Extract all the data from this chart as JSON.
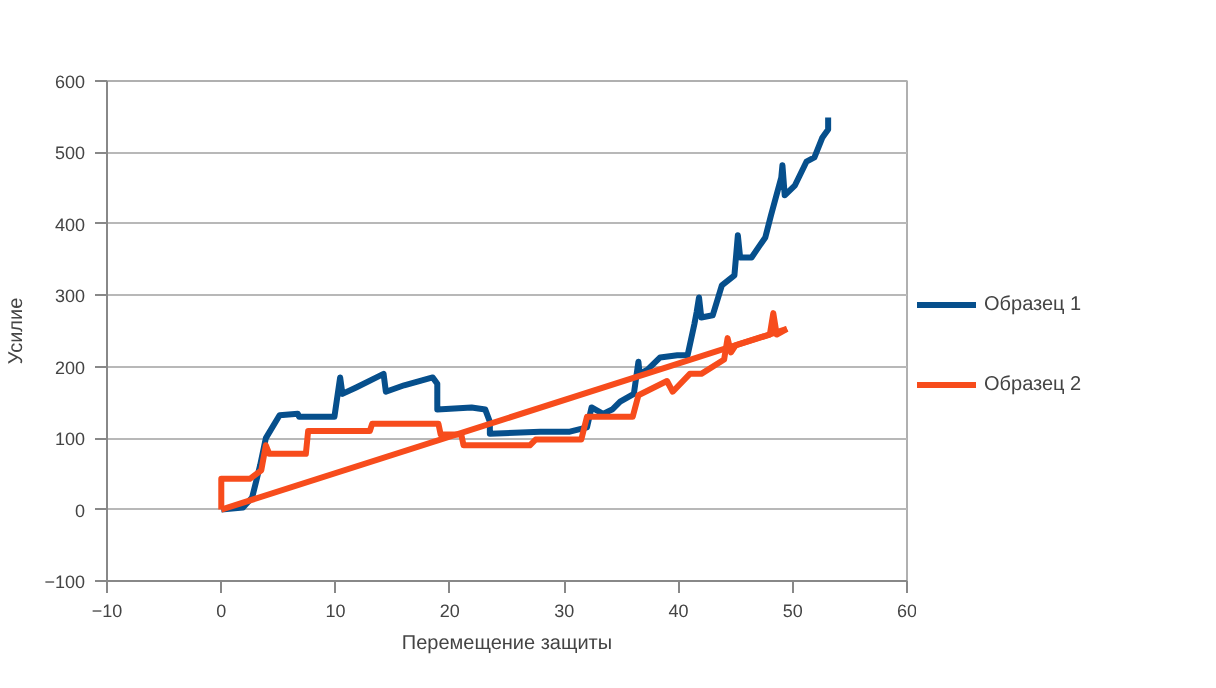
{
  "chart_data": {
    "type": "line",
    "xlabel": "Перемещение защиты",
    "ylabel": "Усилие",
    "xlim": [
      -10,
      60
    ],
    "ylim": [
      -100,
      600
    ],
    "xticks": [
      -10,
      0,
      10,
      20,
      30,
      40,
      50,
      60
    ],
    "yticks": [
      -100,
      0,
      100,
      200,
      300,
      400,
      500,
      600
    ],
    "grid": "y",
    "legend": "right",
    "marker": "none",
    "line_style": "solid",
    "series": [
      {
        "name": "Образец 1",
        "color": "#064f8c",
        "x": [
          0,
          1.9,
          2.7,
          3.4,
          3.9,
          5.1,
          6.7,
          6.8,
          9.9,
          10.4,
          10.6,
          11.8,
          14.2,
          14.4,
          16,
          18.5,
          18.9,
          18.9,
          21.9,
          23.1,
          23.5,
          23.5,
          27.9,
          30.5,
          32,
          32.4,
          33.4,
          34.2,
          34.9,
          36.1,
          36.5,
          36.6,
          37.3,
          38.4,
          39.9,
          40.8,
          41.4,
          41.6,
          41.8,
          42,
          43,
          43.8,
          44.9,
          45.2,
          45.4,
          46.4,
          47.6,
          48.1,
          49,
          49.1,
          49.3,
          50.2,
          51.2,
          51.9,
          52.6,
          53.1,
          53.1
        ],
        "values": [
          0,
          3,
          17,
          62,
          100,
          132,
          134,
          130,
          130,
          185,
          162,
          171,
          190,
          165,
          174,
          185,
          176,
          140,
          143,
          140,
          123,
          106,
          109,
          109,
          115,
          143,
          134,
          140,
          151,
          162,
          207,
          190,
          196,
          213,
          216,
          216,
          260,
          277,
          297,
          269,
          272,
          314,
          328,
          384,
          353,
          353,
          381,
          412,
          465,
          482,
          440,
          454,
          487,
          493,
          521,
          532,
          549
        ]
      },
      {
        "name": "Образец 2",
        "color": "#f74c1c",
        "x": [
          0,
          0,
          2.5,
          3.5,
          3.9,
          4.2,
          7.4,
          7.6,
          13,
          13.2,
          19,
          19.2,
          21,
          21.2,
          27,
          27.5,
          31.5,
          32,
          36,
          36.5,
          39,
          39.5,
          41,
          42,
          44,
          44.3,
          44.6,
          45,
          48,
          48.3,
          48.6,
          49.5
        ],
        "values": [
          0,
          43,
          43,
          55,
          90,
          78,
          78,
          110,
          110,
          120,
          120,
          105,
          105,
          90,
          90,
          98,
          98,
          130,
          130,
          160,
          180,
          165,
          190,
          190,
          210,
          240,
          220,
          230,
          245,
          275,
          245,
          253
        ]
      },
      {
        "color": "#f74c1c",
        "x": [
          0,
          49.5
        ],
        "values": [
          0,
          253
        ]
      }
    ]
  }
}
